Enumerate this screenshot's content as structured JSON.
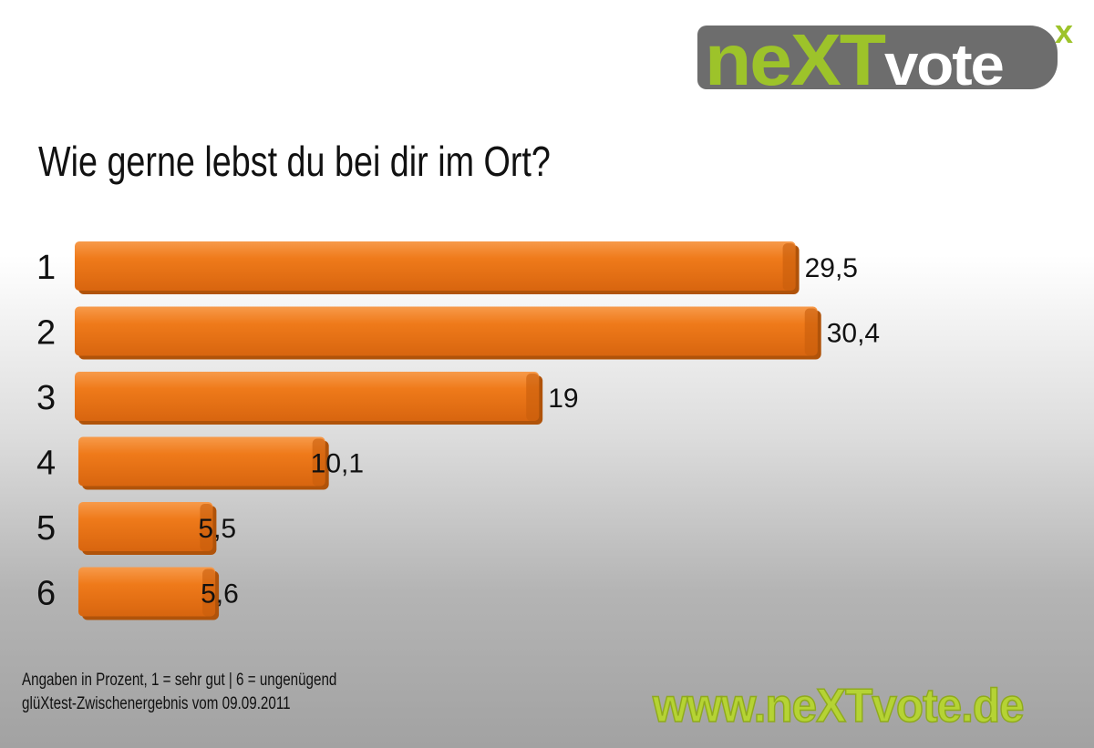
{
  "logo": {
    "green": "neXT",
    "white": "vote",
    "sup": "x"
  },
  "colors": {
    "bar": "#ef7a1a",
    "bar_dark": "#c85e0c",
    "logo_green": "#9dc32a",
    "logo_gray": "#6d6d6d"
  },
  "footer": {
    "line1": "Angaben in Prozent, 1 = sehr gut | 6 = ungenügend",
    "line2": "glüXtest-Zwischenergebnis vom 09.09.2011",
    "url": "www.neXTvote.de"
  },
  "chart_data": {
    "type": "bar",
    "orientation": "horizontal",
    "title": "Wie gerne lebst du bei dir im Ort?",
    "categories": [
      "1",
      "2",
      "3",
      "4",
      "5",
      "6"
    ],
    "values": [
      29.5,
      30.4,
      19,
      10.1,
      5.5,
      5.6
    ],
    "value_labels": [
      "29,5",
      "30,4",
      "19",
      "10,1",
      "5,5",
      "5,6"
    ],
    "xlabel": "",
    "ylabel": "",
    "xlim": [
      0,
      32
    ],
    "grid": false
  }
}
